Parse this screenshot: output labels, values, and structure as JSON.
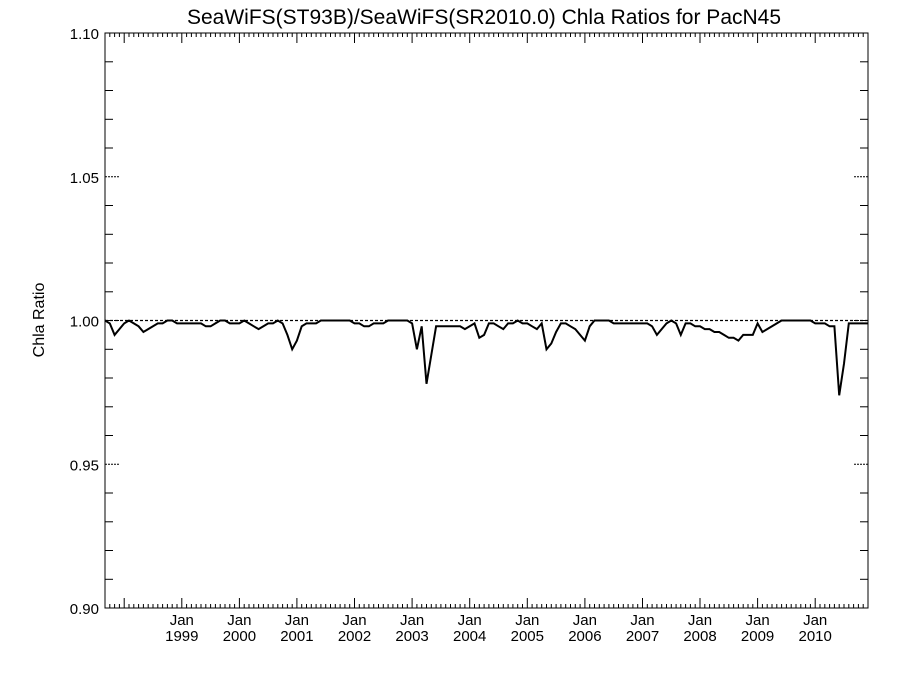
{
  "chart_data": {
    "type": "line",
    "title": "SeaWiFS(ST93B)/SeaWiFS(SR2010.0)  Chla Ratios for PacN45",
    "xlabel": "",
    "ylabel": "Chla Ratio",
    "xlim": [
      "1997-09",
      "2010-12"
    ],
    "ylim": [
      0.9,
      1.1
    ],
    "yticks": [
      "1.10",
      "1.05",
      "1.00",
      "0.95",
      "0.90"
    ],
    "xticks": [
      {
        "date": "1999-01",
        "month": "Jan",
        "year": "1999"
      },
      {
        "date": "2000-01",
        "month": "Jan",
        "year": "2000"
      },
      {
        "date": "2001-01",
        "month": "Jan",
        "year": "2001"
      },
      {
        "date": "2002-01",
        "month": "Jan",
        "year": "2002"
      },
      {
        "date": "2003-01",
        "month": "Jan",
        "year": "2003"
      },
      {
        "date": "2004-01",
        "month": "Jan",
        "year": "2004"
      },
      {
        "date": "2005-01",
        "month": "Jan",
        "year": "2005"
      },
      {
        "date": "2006-01",
        "month": "Jan",
        "year": "2006"
      },
      {
        "date": "2007-01",
        "month": "Jan",
        "year": "2007"
      },
      {
        "date": "2008-01",
        "month": "Jan",
        "year": "2008"
      },
      {
        "date": "2009-01",
        "month": "Jan",
        "year": "2009"
      },
      {
        "date": "2010-01",
        "month": "Jan",
        "year": "2010"
      }
    ],
    "reference_line": 1.0,
    "series": [
      {
        "x": [
          "1997-09",
          "1997-10",
          "1997-11",
          "1997-12",
          "1998-01",
          "1998-02",
          "1998-03",
          "1998-04",
          "1998-05",
          "1998-06",
          "1998-07",
          "1998-08",
          "1998-09",
          "1998-10",
          "1998-11",
          "1998-12",
          "1999-01",
          "1999-02",
          "1999-03",
          "1999-04",
          "1999-05",
          "1999-06",
          "1999-07",
          "1999-08",
          "1999-09",
          "1999-10",
          "1999-11",
          "1999-12",
          "2000-01",
          "2000-02",
          "2000-03",
          "2000-04",
          "2000-05",
          "2000-06",
          "2000-07",
          "2000-08",
          "2000-09",
          "2000-10",
          "2000-11",
          "2000-12",
          "2001-01",
          "2001-02",
          "2001-03",
          "2001-04",
          "2001-05",
          "2001-06",
          "2001-07",
          "2001-08",
          "2001-09",
          "2001-10",
          "2001-11",
          "2001-12",
          "2002-01",
          "2002-02",
          "2002-03",
          "2002-04",
          "2002-05",
          "2002-06",
          "2002-07",
          "2002-08",
          "2002-09",
          "2002-10",
          "2002-11",
          "2002-12",
          "2003-01",
          "2003-02",
          "2003-03",
          "2003-04",
          "2003-05",
          "2003-06",
          "2003-07",
          "2003-08",
          "2003-09",
          "2003-10",
          "2003-11",
          "2003-12",
          "2004-01",
          "2004-02",
          "2004-03",
          "2004-04",
          "2004-05",
          "2004-06",
          "2004-07",
          "2004-08",
          "2004-09",
          "2004-10",
          "2004-11",
          "2004-12",
          "2005-01",
          "2005-02",
          "2005-03",
          "2005-04",
          "2005-05",
          "2005-06",
          "2005-07",
          "2005-08",
          "2005-09",
          "2005-10",
          "2005-11",
          "2005-12",
          "2006-01",
          "2006-02",
          "2006-03",
          "2006-04",
          "2006-05",
          "2006-06",
          "2006-07",
          "2006-08",
          "2006-09",
          "2006-10",
          "2006-11",
          "2006-12",
          "2007-01",
          "2007-02",
          "2007-03",
          "2007-04",
          "2007-05",
          "2007-06",
          "2007-07",
          "2007-08",
          "2007-09",
          "2007-10",
          "2007-11",
          "2007-12",
          "2008-01",
          "2008-02",
          "2008-03",
          "2008-04",
          "2008-05",
          "2008-06",
          "2008-07",
          "2008-08",
          "2008-09",
          "2008-10",
          "2008-11",
          "2008-12",
          "2009-01",
          "2009-02",
          "2009-03",
          "2009-04",
          "2009-05",
          "2009-06",
          "2009-07",
          "2009-08",
          "2009-09",
          "2009-10",
          "2009-11",
          "2009-12",
          "2010-01",
          "2010-02",
          "2010-03",
          "2010-04",
          "2010-05",
          "2010-06",
          "2010-07",
          "2010-08",
          "2010-09",
          "2010-10",
          "2010-11",
          "2010-12"
        ],
        "y": [
          1.0,
          0.999,
          0.995,
          0.997,
          0.999,
          1.0,
          0.999,
          0.998,
          0.996,
          0.997,
          0.998,
          0.999,
          0.999,
          1.0,
          1.0,
          0.999,
          0.999,
          0.999,
          0.999,
          0.999,
          0.999,
          0.998,
          0.998,
          0.999,
          1.0,
          1.0,
          0.999,
          0.999,
          0.999,
          1.0,
          0.999,
          0.998,
          0.997,
          0.998,
          0.999,
          0.999,
          1.0,
          0.999,
          0.995,
          0.99,
          0.993,
          0.998,
          0.999,
          0.999,
          0.999,
          1.0,
          1.0,
          1.0,
          1.0,
          1.0,
          1.0,
          1.0,
          0.999,
          0.999,
          0.998,
          0.998,
          0.999,
          0.999,
          0.999,
          1.0,
          1.0,
          1.0,
          1.0,
          1.0,
          0.999,
          0.99,
          0.998,
          0.978,
          0.988,
          0.998,
          0.998,
          0.998,
          0.998,
          0.998,
          0.998,
          0.997,
          0.998,
          0.999,
          0.994,
          0.995,
          0.999,
          0.999,
          0.998,
          0.997,
          0.999,
          0.999,
          1.0,
          0.999,
          0.999,
          0.998,
          0.997,
          0.999,
          0.99,
          0.992,
          0.996,
          0.999,
          0.999,
          0.998,
          0.997,
          0.995,
          0.993,
          0.998,
          1.0,
          1.0,
          1.0,
          1.0,
          0.999,
          0.999,
          0.999,
          0.999,
          0.999,
          0.999,
          0.999,
          0.999,
          0.998,
          0.995,
          0.997,
          0.999,
          1.0,
          0.999,
          0.995,
          0.999,
          0.999,
          0.998,
          0.998,
          0.997,
          0.997,
          0.996,
          0.996,
          0.995,
          0.994,
          0.994,
          0.993,
          0.995,
          0.995,
          0.995,
          0.999,
          0.996,
          0.997,
          0.998,
          0.999,
          1.0,
          1.0,
          1.0,
          1.0,
          1.0,
          1.0,
          1.0,
          0.999,
          0.999,
          0.999,
          0.998,
          0.998,
          0.974,
          0.985,
          0.999,
          0.999,
          0.999,
          0.999,
          0.999
        ]
      }
    ]
  }
}
